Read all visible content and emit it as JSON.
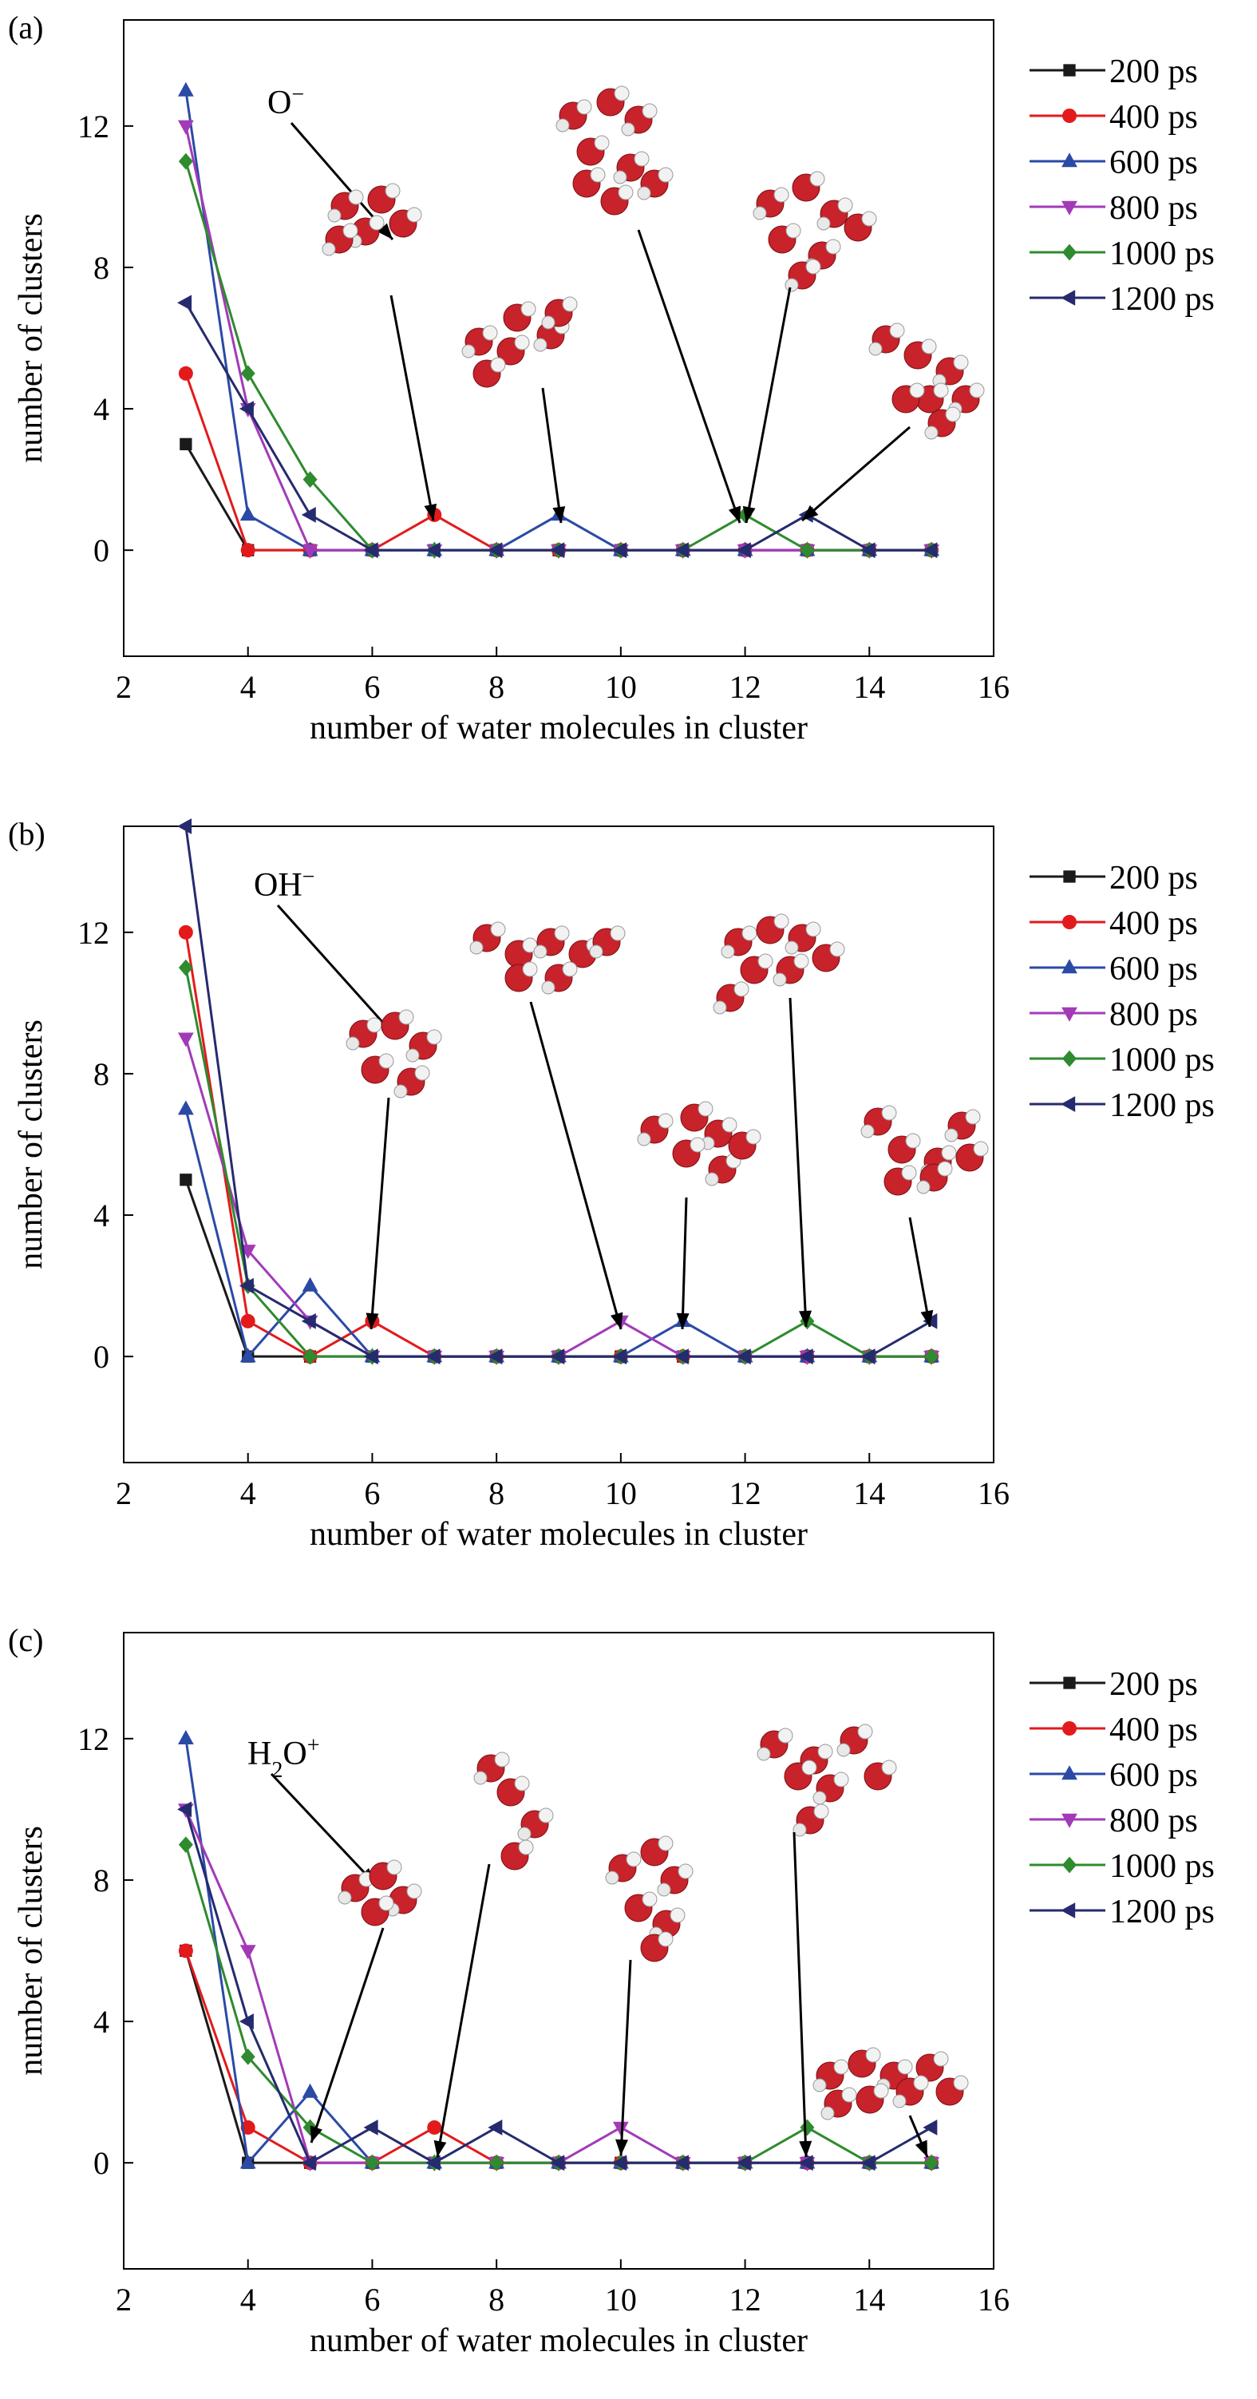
{
  "legend_labels": [
    "200 ps",
    "400 ps",
    "600 ps",
    "800 ps",
    "1000 ps",
    "1200 ps"
  ],
  "series_colors": [
    "#1a1a1a",
    "#e31a1c",
    "#2b4aa6",
    "#a23ab8",
    "#2e8b2e",
    "#252b6e"
  ],
  "series_markers": [
    "square",
    "circle",
    "triangle-up",
    "triangle-down",
    "diamond",
    "triangle-left"
  ],
  "icons": {
    "water-molecule-cluster": "red oxygen spheres with white hydrogen spheres"
  },
  "chart_data": [
    {
      "type": "line",
      "panel_label": "(a)",
      "xlabel": "number of water molecules in cluster",
      "ylabel": "number of clusters",
      "xlim": [
        2,
        16
      ],
      "ylim": [
        -3,
        15
      ],
      "xticks": [
        2,
        4,
        6,
        8,
        10,
        12,
        14,
        16
      ],
      "yticks": [
        0,
        4,
        8,
        12
      ],
      "legend_position": "right",
      "annotation": {
        "main": "O",
        "sup": "−",
        "sub": ""
      },
      "x": [
        3,
        4,
        5,
        6,
        7,
        8,
        9,
        10,
        11,
        12,
        13,
        14,
        15
      ],
      "series": [
        {
          "name": "200 ps",
          "values": [
            3,
            0,
            0,
            0,
            0,
            0,
            0,
            0,
            0,
            0,
            0,
            0,
            0
          ]
        },
        {
          "name": "400 ps",
          "values": [
            5,
            0,
            0,
            0,
            1,
            0,
            0,
            0,
            0,
            0,
            0,
            0,
            0
          ]
        },
        {
          "name": "600 ps",
          "values": [
            13,
            1,
            0,
            0,
            0,
            0,
            1,
            0,
            0,
            0,
            0,
            0,
            0
          ]
        },
        {
          "name": "800 ps",
          "values": [
            12,
            4,
            0,
            0,
            0,
            0,
            0,
            0,
            0,
            0,
            0,
            0,
            0
          ]
        },
        {
          "name": "1000 ps",
          "values": [
            11,
            5,
            2,
            0,
            0,
            0,
            0,
            0,
            0,
            1,
            0,
            0,
            0
          ]
        },
        {
          "name": "1200 ps",
          "values": [
            7,
            4,
            1,
            0,
            0,
            0,
            0,
            0,
            0,
            0,
            1,
            0,
            0
          ]
        }
      ]
    },
    {
      "type": "line",
      "panel_label": "(b)",
      "xlabel": "number of water molecules in cluster",
      "ylabel": "number of clusters",
      "xlim": [
        2,
        16
      ],
      "ylim": [
        -3,
        15
      ],
      "xticks": [
        2,
        4,
        6,
        8,
        10,
        12,
        14,
        16
      ],
      "yticks": [
        0,
        4,
        8,
        12
      ],
      "legend_position": "right",
      "annotation": {
        "main": "OH",
        "sup": "−",
        "sub": ""
      },
      "x": [
        3,
        4,
        5,
        6,
        7,
        8,
        9,
        10,
        11,
        12,
        13,
        14,
        15
      ],
      "series": [
        {
          "name": "200 ps",
          "values": [
            5,
            0,
            0,
            0,
            0,
            0,
            0,
            0,
            0,
            0,
            0,
            0,
            0
          ]
        },
        {
          "name": "400 ps",
          "values": [
            12,
            1,
            0,
            1,
            0,
            0,
            0,
            0,
            0,
            0,
            0,
            0,
            0
          ]
        },
        {
          "name": "600 ps",
          "values": [
            7,
            0,
            2,
            0,
            0,
            0,
            0,
            0,
            1,
            0,
            0,
            0,
            0
          ]
        },
        {
          "name": "800 ps",
          "values": [
            9,
            3,
            1,
            0,
            0,
            0,
            0,
            1,
            0,
            0,
            0,
            0,
            0
          ]
        },
        {
          "name": "1000 ps",
          "values": [
            11,
            2,
            0,
            0,
            0,
            0,
            0,
            0,
            0,
            0,
            1,
            0,
            0
          ]
        },
        {
          "name": "1200 ps",
          "values": [
            15,
            2,
            1,
            0,
            0,
            0,
            0,
            0,
            0,
            0,
            0,
            0,
            1
          ]
        }
      ]
    },
    {
      "type": "line",
      "panel_label": "(c)",
      "xlabel": "number of water molecules in cluster",
      "ylabel": "number of clusters",
      "xlim": [
        2,
        16
      ],
      "ylim": [
        -3,
        15
      ],
      "xticks": [
        2,
        4,
        6,
        8,
        10,
        12,
        14,
        16
      ],
      "yticks": [
        0,
        4,
        8,
        12
      ],
      "legend_position": "right",
      "annotation": {
        "main": "H",
        "sub": "2",
        "main2": "O",
        "sup": "+"
      },
      "x": [
        3,
        4,
        5,
        6,
        7,
        8,
        9,
        10,
        11,
        12,
        13,
        14,
        15
      ],
      "series": [
        {
          "name": "200 ps",
          "values": [
            6,
            0,
            0,
            0,
            0,
            0,
            0,
            0,
            0,
            0,
            0,
            0,
            0
          ]
        },
        {
          "name": "400 ps",
          "values": [
            6,
            1,
            0,
            0,
            1,
            0,
            0,
            0,
            0,
            0,
            0,
            0,
            0
          ]
        },
        {
          "name": "600 ps",
          "values": [
            12,
            0,
            2,
            0,
            0,
            0,
            0,
            0,
            0,
            0,
            0,
            0,
            0
          ]
        },
        {
          "name": "800 ps",
          "values": [
            10,
            6,
            0,
            0,
            0,
            0,
            0,
            1,
            0,
            0,
            0,
            0,
            0
          ]
        },
        {
          "name": "1000 ps",
          "values": [
            9,
            3,
            1,
            0,
            0,
            0,
            0,
            0,
            0,
            0,
            1,
            0,
            0
          ]
        },
        {
          "name": "1200 ps",
          "values": [
            10,
            4,
            0,
            1,
            0,
            1,
            0,
            0,
            0,
            0,
            0,
            0,
            1
          ]
        }
      ]
    }
  ]
}
